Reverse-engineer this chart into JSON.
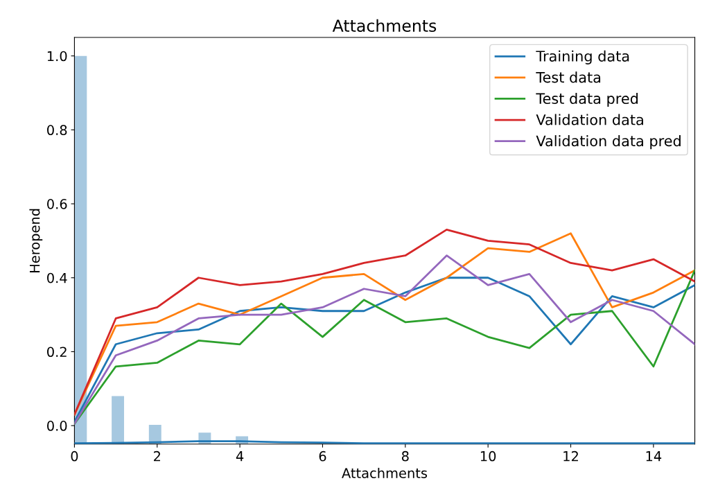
{
  "chart_data": {
    "type": "line",
    "title": "Attachments",
    "xlabel": "Attachments",
    "ylabel": "Heropend",
    "x": [
      0,
      1,
      2,
      3,
      4,
      5,
      6,
      7,
      8,
      9,
      10,
      11,
      12,
      13,
      14,
      15
    ],
    "xlim": [
      0,
      15
    ],
    "xticks": [
      0,
      2,
      4,
      6,
      8,
      10,
      12,
      14
    ],
    "ylim": [
      -0.05,
      1.05
    ],
    "yticks": [
      {
        "value": 0,
        "label": "0.0"
      },
      {
        "value": 0.2,
        "label": "0.2"
      },
      {
        "value": 0.4,
        "label": "0.4"
      },
      {
        "value": 0.6,
        "label": "0.6"
      },
      {
        "value": 0.8,
        "label": "0.8"
      },
      {
        "value": 1.0,
        "label": "1.0"
      }
    ],
    "grid": false,
    "legend": "top right",
    "series": [
      {
        "type": "bar",
        "color": "#a6c8e0",
        "x": [
          0.15,
          1.05,
          1.95,
          3.15,
          4.05
        ],
        "values": [
          1.05,
          0.13,
          0.052,
          0.031,
          0.021
        ],
        "base": [
          -0.05,
          -0.05,
          -0.05,
          -0.05,
          -0.05
        ]
      },
      {
        "type": "line",
        "color": "#1f77b4",
        "values": [
          -0.048,
          -0.047,
          -0.045,
          -0.042,
          -0.042,
          -0.045,
          -0.046,
          -0.048,
          -0.048,
          -0.048,
          -0.048,
          -0.048,
          -0.048,
          -0.048,
          -0.048,
          -0.048
        ]
      },
      {
        "name": "Training data",
        "color": "#1f77b4",
        "values": [
          0.01,
          0.22,
          0.25,
          0.26,
          0.31,
          0.32,
          0.31,
          0.31,
          0.36,
          0.4,
          0.4,
          0.35,
          0.22,
          0.35,
          0.32,
          0.38
        ]
      },
      {
        "name": "Test data",
        "color": "#ff7f0e",
        "values": [
          0.03,
          0.27,
          0.28,
          0.33,
          0.3,
          0.35,
          0.4,
          0.41,
          0.34,
          0.4,
          0.48,
          0.47,
          0.52,
          0.32,
          0.36,
          0.42
        ]
      },
      {
        "name": "Test data pred",
        "color": "#2ca02c",
        "values": [
          0.005,
          0.16,
          0.17,
          0.23,
          0.22,
          0.33,
          0.24,
          0.34,
          0.28,
          0.29,
          0.24,
          0.21,
          0.3,
          0.31,
          0.16,
          0.42
        ]
      },
      {
        "name": "Validation data",
        "color": "#d62728",
        "values": [
          0.03,
          0.29,
          0.32,
          0.4,
          0.38,
          0.39,
          0.41,
          0.44,
          0.46,
          0.53,
          0.5,
          0.49,
          0.44,
          0.42,
          0.45,
          0.39
        ]
      },
      {
        "name": "Validation data pred",
        "color": "#9467bd",
        "values": [
          0.005,
          0.19,
          0.23,
          0.29,
          0.3,
          0.3,
          0.32,
          0.37,
          0.35,
          0.46,
          0.38,
          0.41,
          0.28,
          0.34,
          0.31,
          0.22
        ]
      }
    ]
  }
}
